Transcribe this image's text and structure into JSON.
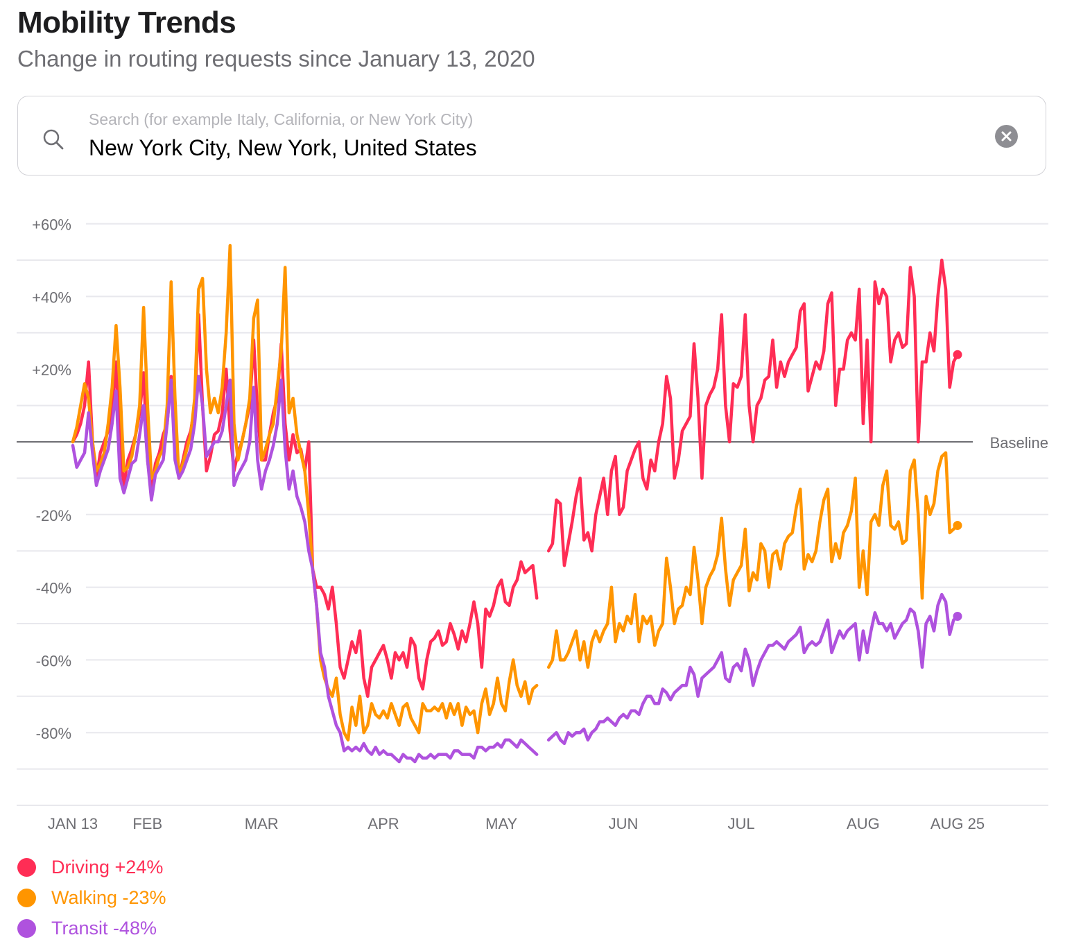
{
  "header": {
    "title": "Mobility Trends",
    "subtitle": "Change in routing requests since January 13, 2020"
  },
  "search": {
    "placeholder": "Search (for example Italy, California, or New York City)",
    "value": "New York City, New York, United States",
    "search_icon": "search-icon",
    "clear_icon": "clear-circle-icon"
  },
  "chart_data": {
    "type": "line",
    "x_range": [
      "2020-01-13",
      "2020-08-25"
    ],
    "x_interval": "daily",
    "ylim": [
      -100,
      60
    ],
    "y_unit": "%",
    "grid": true,
    "y_ticks": [
      {
        "value": 60,
        "label": "+60%"
      },
      {
        "value": 40,
        "label": "+40%"
      },
      {
        "value": 20,
        "label": "+20%"
      },
      {
        "value": -20,
        "label": "-20%"
      },
      {
        "value": -40,
        "label": "-40%"
      },
      {
        "value": -60,
        "label": "-60%"
      },
      {
        "value": -80,
        "label": "-80%"
      }
    ],
    "x_ticks": [
      {
        "date": "2020-01-13",
        "label": "JAN 13"
      },
      {
        "date": "2020-02-01",
        "label": "FEB"
      },
      {
        "date": "2020-03-01",
        "label": "MAR"
      },
      {
        "date": "2020-04-01",
        "label": "APR"
      },
      {
        "date": "2020-05-01",
        "label": "MAY"
      },
      {
        "date": "2020-06-01",
        "label": "JUN"
      },
      {
        "date": "2020-07-01",
        "label": "JUL"
      },
      {
        "date": "2020-08-01",
        "label": "AUG"
      },
      {
        "date": "2020-08-25",
        "label": "AUG 25"
      }
    ],
    "baseline": {
      "value": 0,
      "label": "Baseline"
    },
    "legend_placement": "bottom-left",
    "series": [
      {
        "name": "Driving",
        "legend_label": "Driving +24%",
        "latest": 24,
        "color": "#FF2D55",
        "values": [
          0,
          2,
          5,
          10,
          22,
          0,
          -10,
          -3,
          0,
          3,
          8,
          22,
          -2,
          -12,
          -5,
          -2,
          2,
          8,
          19,
          -5,
          -14,
          -6,
          -3,
          2,
          5,
          18,
          -3,
          -10,
          -5,
          0,
          3,
          10,
          35,
          10,
          -8,
          -4,
          2,
          3,
          8,
          20,
          3,
          -8,
          -3,
          0,
          5,
          10,
          28,
          8,
          -5,
          -5,
          2,
          8,
          12,
          27,
          5,
          -5,
          2,
          -3,
          -2,
          -8,
          0,
          -35,
          -40,
          -40,
          -42,
          -46,
          -40,
          -50,
          -62,
          -65,
          -60,
          -55,
          -58,
          -52,
          -65,
          -70,
          -62,
          -60,
          -58,
          -56,
          -60,
          -65,
          -58,
          -60,
          -58,
          -62,
          -54,
          -56,
          -65,
          -68,
          -60,
          -55,
          -54,
          -52,
          -56,
          -55,
          -50,
          -53,
          -57,
          -52,
          -55,
          -50,
          -44,
          -50,
          -62,
          -46,
          -48,
          -45,
          -40,
          -38,
          -44,
          -45,
          -40,
          -38,
          -33,
          -36,
          -35,
          -34,
          -43,
          null,
          null,
          -30,
          -28,
          -16,
          -17,
          -34,
          -28,
          -22,
          -15,
          -10,
          -27,
          -25,
          -30,
          -20,
          -15,
          -10,
          -20,
          -8,
          -4,
          -20,
          -18,
          -8,
          -5,
          -2,
          0,
          -10,
          -13,
          -5,
          -8,
          0,
          5,
          18,
          12,
          -10,
          -5,
          3,
          5,
          7,
          27,
          12,
          -10,
          10,
          13,
          15,
          20,
          35,
          10,
          0,
          16,
          15,
          18,
          35,
          10,
          0,
          10,
          12,
          17,
          18,
          28,
          15,
          22,
          18,
          22,
          24,
          26,
          36,
          38,
          14,
          18,
          22,
          20,
          25,
          38,
          41,
          10,
          20,
          20,
          28,
          30,
          28,
          42,
          5,
          28,
          0,
          44,
          38,
          42,
          40,
          22,
          28,
          30,
          26,
          27,
          48,
          40,
          0,
          22,
          22,
          30,
          25,
          40,
          50,
          42,
          15,
          22,
          24
        ]
      },
      {
        "name": "Walking",
        "legend_label": "Walking -23%",
        "latest": -23,
        "color": "#FF9500",
        "values": [
          0,
          4,
          10,
          16,
          12,
          0,
          -8,
          -6,
          -3,
          5,
          15,
          32,
          15,
          -8,
          -7,
          -4,
          2,
          10,
          37,
          10,
          -10,
          -8,
          -4,
          -2,
          10,
          44,
          12,
          -10,
          -6,
          -2,
          2,
          12,
          42,
          45,
          20,
          8,
          12,
          8,
          15,
          30,
          54,
          5,
          -5,
          0,
          5,
          12,
          34,
          39,
          -5,
          -2,
          2,
          5,
          15,
          25,
          48,
          8,
          12,
          2,
          -3,
          -8,
          -20,
          -35,
          -45,
          -60,
          -65,
          -68,
          -70,
          -65,
          -75,
          -80,
          -82,
          -73,
          -78,
          -70,
          -80,
          -78,
          -72,
          -75,
          -76,
          -74,
          -76,
          -72,
          -75,
          -78,
          -73,
          -72,
          -76,
          -78,
          -80,
          -72,
          -74,
          -74,
          -73,
          -74,
          -72,
          -76,
          -72,
          -75,
          -72,
          -78,
          -73,
          -75,
          -74,
          -80,
          -72,
          -68,
          -75,
          -72,
          -65,
          -72,
          -74,
          -66,
          -60,
          -67,
          -70,
          -66,
          -72,
          -68,
          -67,
          null,
          null,
          -62,
          -60,
          -52,
          -60,
          -60,
          -58,
          -55,
          -52,
          -60,
          -55,
          -62,
          -55,
          -52,
          -55,
          -52,
          -50,
          -40,
          -55,
          -50,
          -52,
          -48,
          -50,
          -42,
          -55,
          -48,
          -50,
          -48,
          -56,
          -52,
          -50,
          -32,
          -40,
          -50,
          -46,
          -45,
          -40,
          -42,
          -29,
          -38,
          -50,
          -40,
          -37,
          -35,
          -31,
          -21,
          -35,
          -45,
          -38,
          -36,
          -34,
          -24,
          -41,
          -36,
          -38,
          -28,
          -30,
          -40,
          -31,
          -30,
          -35,
          -28,
          -26,
          -25,
          -18,
          -13,
          -35,
          -31,
          -33,
          -30,
          -22,
          -16,
          -13,
          -33,
          -28,
          -32,
          -25,
          -23,
          -19,
          -10,
          -40,
          -30,
          -42,
          -22,
          -20,
          -23,
          -12,
          -8,
          -23,
          -24,
          -22,
          -28,
          -27,
          -8,
          -5,
          -20,
          -43,
          -15,
          -20,
          -17,
          -8,
          -4,
          -3,
          -25,
          -24,
          -23
        ]
      },
      {
        "name": "Transit",
        "legend_label": "Transit -48%",
        "latest": -48,
        "color": "#AF52DE",
        "values": [
          -1,
          -7,
          -5,
          -3,
          8,
          -3,
          -12,
          -8,
          -5,
          -2,
          5,
          14,
          -10,
          -14,
          -10,
          -6,
          -5,
          2,
          10,
          -5,
          -16,
          -9,
          -7,
          -5,
          5,
          17,
          -5,
          -10,
          -8,
          -5,
          -2,
          5,
          18,
          10,
          -4,
          -2,
          0,
          0,
          3,
          10,
          17,
          -12,
          -9,
          -7,
          -5,
          0,
          15,
          -5,
          -13,
          -8,
          -5,
          -1,
          5,
          17,
          -2,
          -13,
          -8,
          -15,
          -18,
          -22,
          -30,
          -35,
          -45,
          -58,
          -62,
          -70,
          -74,
          -78,
          -80,
          -85,
          -84,
          -85,
          -84,
          -85,
          -83,
          -85,
          -86,
          -84,
          -86,
          -85,
          -86,
          -86,
          -87,
          -88,
          -86,
          -87,
          -87,
          -88,
          -86,
          -87,
          -87,
          -86,
          -87,
          -86,
          -86,
          -86,
          -87,
          -85,
          -85,
          -86,
          -86,
          -86,
          -87,
          -84,
          -84,
          -85,
          -84,
          -84,
          -83,
          -84,
          -82,
          -82,
          -83,
          -84,
          -82,
          -83,
          -84,
          -85,
          -86,
          null,
          null,
          -82,
          -81,
          -80,
          -82,
          -83,
          -80,
          -81,
          -80,
          -80,
          -79,
          -82,
          -80,
          -79,
          -77,
          -77,
          -76,
          -77,
          -78,
          -76,
          -75,
          -76,
          -74,
          -74,
          -75,
          -72,
          -70,
          -70,
          -72,
          -72,
          -68,
          -69,
          -71,
          -69,
          -68,
          -67,
          -67,
          -62,
          -64,
          -70,
          -65,
          -64,
          -63,
          -62,
          -60,
          -58,
          -65,
          -66,
          -62,
          -61,
          -63,
          -57,
          -60,
          -67,
          -63,
          -60,
          -58,
          -56,
          -56,
          -55,
          -56,
          -57,
          -55,
          -54,
          -53,
          -51,
          -58,
          -56,
          -55,
          -56,
          -55,
          -52,
          -49,
          -58,
          -55,
          -52,
          -54,
          -52,
          -51,
          -50,
          -60,
          -52,
          -58,
          -52,
          -47,
          -50,
          -50,
          -52,
          -50,
          -54,
          -52,
          -50,
          -49,
          -46,
          -47,
          -52,
          -62,
          -50,
          -48,
          -52,
          -45,
          -42,
          -44,
          -53,
          -49,
          -48
        ]
      }
    ]
  }
}
